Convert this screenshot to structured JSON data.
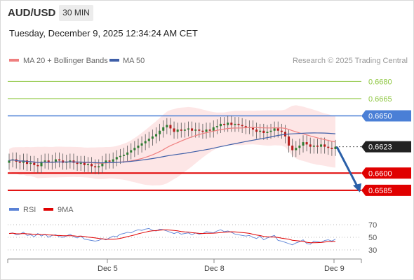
{
  "header": {
    "symbol": "AUD/USD",
    "timeframe": "30 MIN",
    "datetime": "Tuesday, December 9, 2025 12:34:24 AM CET"
  },
  "legend": {
    "ma20_label": "MA 20 + Bollinger Bands",
    "ma50_label": "MA 50",
    "copyright": "Research © 2025 Trading Central"
  },
  "colors": {
    "candle_up": "#2e7d32",
    "candle_down": "#b71c1c",
    "ma20": "#ef7f7f",
    "bollinger_fill": "#fde2e2",
    "ma50": "#3f5fa8",
    "resistance": "#8dc63f",
    "pivot": "#4a7fd6",
    "support": "#e00000",
    "rsi": "#5a82d6",
    "rsi_ma": "#e00000",
    "arrow": "#2a5fa8"
  },
  "levels": [
    {
      "value": "0.6680",
      "kind": "resistance"
    },
    {
      "value": "0.6665",
      "kind": "resistance"
    },
    {
      "value": "0.6650",
      "kind": "pivot"
    },
    {
      "value": "0.6623",
      "kind": "last"
    },
    {
      "value": "0.6600",
      "kind": "support"
    },
    {
      "value": "0.6585",
      "kind": "support"
    }
  ],
  "oscillator": {
    "rsi_label": "RSI",
    "ma_label": "9MA",
    "ticks": [
      "70",
      "50",
      "30"
    ]
  },
  "x_axis": {
    "ticks": [
      "Dec 5",
      "Dec 8",
      "Dec 9"
    ]
  },
  "chart_data": {
    "type": "candlestick",
    "interval": "30 MIN",
    "y_range": [
      0.658,
      0.669
    ],
    "x_range_bars": [
      0,
      92
    ],
    "last_price": 0.6623,
    "closes": [
      0.6611,
      0.6612,
      0.661,
      0.6609,
      0.6611,
      0.6608,
      0.6609,
      0.6607,
      0.6606,
      0.661,
      0.6611,
      0.6609,
      0.661,
      0.6612,
      0.6611,
      0.6609,
      0.661,
      0.6611,
      0.6609,
      0.6608,
      0.6609,
      0.6607,
      0.6608,
      0.6606,
      0.6605,
      0.6606,
      0.6609,
      0.6611,
      0.661,
      0.6612,
      0.6614,
      0.6615,
      0.6616,
      0.6618,
      0.662,
      0.6622,
      0.6624,
      0.6626,
      0.6628,
      0.663,
      0.6632,
      0.6634,
      0.6637,
      0.664,
      0.6642,
      0.6639,
      0.6636,
      0.6638,
      0.6637,
      0.6638,
      0.6639,
      0.6637,
      0.6638,
      0.6637,
      0.6636,
      0.6638,
      0.6637,
      0.664,
      0.6641,
      0.6643,
      0.6642,
      0.6644,
      0.6642,
      0.6643,
      0.6642,
      0.6641,
      0.664,
      0.664,
      0.6638,
      0.6636,
      0.6637,
      0.6635,
      0.6636,
      0.6637,
      0.6639,
      0.6637,
      0.6636,
      0.6632,
      0.6624,
      0.662,
      0.6622,
      0.6624,
      0.6627,
      0.6625,
      0.6623,
      0.6624,
      0.6623,
      0.6625,
      0.6623,
      0.6622,
      0.6621,
      0.6623
    ],
    "projection": {
      "from": 0.6623,
      "to": 0.6585
    },
    "rsi": {
      "y_range": [
        20,
        80
      ],
      "values": [
        56,
        57,
        54,
        55,
        58,
        53,
        54,
        51,
        56,
        52,
        55,
        50,
        53,
        54,
        51,
        50,
        52,
        55,
        51,
        49,
        52,
        47,
        46,
        45,
        44,
        45,
        48,
        46,
        49,
        52,
        51,
        55,
        56,
        58,
        57,
        60,
        62,
        61,
        63,
        64,
        61,
        60,
        63,
        62,
        60,
        58,
        56,
        58,
        55,
        56,
        57,
        54,
        57,
        55,
        56,
        59,
        58,
        57,
        60,
        62,
        59,
        60,
        58,
        55,
        54,
        53,
        52,
        53,
        50,
        48,
        52,
        46,
        49,
        51,
        53,
        45,
        44,
        42,
        40,
        38,
        41,
        43,
        46,
        40,
        39,
        44,
        43,
        42,
        45,
        46,
        44,
        47
      ]
    }
  }
}
